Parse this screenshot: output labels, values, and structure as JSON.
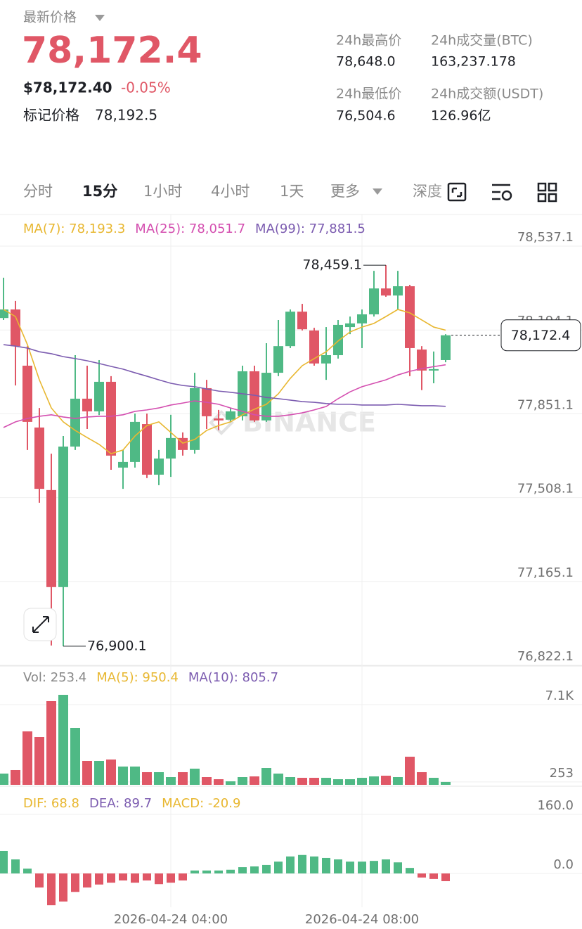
{
  "header": {
    "label": "最新价格",
    "price": "78,172.4",
    "usd_price": "$78,172.40",
    "change": "-0.05%",
    "mark_label": "标记价格",
    "mark_price": "78,192.5"
  },
  "stats": [
    {
      "label": "24h最高价",
      "value": "78,648.0"
    },
    {
      "label": "24h成交量(BTC)",
      "value": "163,237.178"
    },
    {
      "label": "24h最低价",
      "value": "76,504.6"
    },
    {
      "label": "24h成交额(USDT)",
      "value": "126.96亿"
    }
  ],
  "tabs": [
    "分时",
    "15分",
    "1小时",
    "4小时",
    "1天",
    "更多",
    "深度"
  ],
  "watermark": "BINANCE",
  "chart_data": [
    {
      "type": "candlestick",
      "up_color": "#4fb985",
      "down_color": "#e05766",
      "categories": [
        null,
        null,
        null,
        null,
        null,
        null,
        null,
        null,
        null,
        null,
        null,
        null,
        null,
        null,
        "2026-04-24 04:00",
        null,
        null,
        null,
        null,
        null,
        null,
        null,
        null,
        null,
        null,
        null,
        null,
        null,
        null,
        null,
        "2026-04-24 08:00",
        null,
        null,
        null,
        null,
        null,
        null,
        null
      ],
      "candles": {
        "open": [
          78243,
          78278,
          78048,
          77795,
          77539,
          77142,
          77717,
          77913,
          77861,
          77982,
          77631,
          77654,
          77809,
          77602,
          77668,
          77752,
          77703,
          77956,
          77832,
          77827,
          77841,
          78025,
          77824,
          78019,
          78128,
          78269,
          78192,
          78057,
          78091,
          78206,
          78221,
          78258,
          78364,
          78335,
          78373,
          78114,
          78028,
          78071
        ],
        "high": [
          78408,
          78313,
          78128,
          77875,
          77688,
          77760,
          78091,
          78048,
          78071,
          78005,
          77703,
          77852,
          77852,
          77703,
          77847,
          77775,
          78019,
          77990,
          77867,
          77875,
          78048,
          78048,
          78140,
          78235,
          78278,
          78301,
          78203,
          78206,
          78235,
          78249,
          78278,
          78436,
          78459.1,
          78436,
          78379,
          78128,
          78106,
          78177
        ],
        "low": [
          78235,
          77967,
          77703,
          77487,
          76903,
          76900.1,
          77703,
          77789,
          77846,
          77622,
          77544,
          77631,
          77588,
          77559,
          77593,
          77680,
          77688,
          77789,
          77784,
          77818,
          77824,
          77818,
          77818,
          78005,
          78120,
          78192,
          78048,
          77990,
          78077,
          78177,
          78120,
          78249,
          78330,
          78278,
          78005,
          77948,
          77976,
          78062
        ],
        "close": [
          78278,
          78128,
          77818,
          77544,
          77142,
          77717,
          77913,
          77861,
          77982,
          77680,
          77654,
          77818,
          77602,
          77668,
          77752,
          77703,
          77956,
          77841,
          77824,
          77861,
          78025,
          77824,
          78019,
          78128,
          78269,
          78197,
          78057,
          78091,
          78215,
          78221,
          78258,
          78364,
          78335,
          78373,
          78120,
          78028,
          78034,
          78172.4
        ]
      },
      "series": [
        {
          "name": "MA(7): 78,193.3",
          "color": "#e8b730",
          "values": [
            78278,
            78249,
            78134,
            77990,
            77875,
            77818,
            77783,
            77754,
            77726,
            77688,
            77703,
            77760,
            77803,
            77818,
            77775,
            77731,
            77746,
            77783,
            77803,
            77818,
            77847,
            77870,
            77890,
            77933,
            77996,
            78048,
            78077,
            78105,
            78149,
            78186,
            78206,
            78221,
            78249,
            78278,
            78264,
            78235,
            78206,
            78193.3
          ]
        },
        {
          "name": "MA(25): 78,051.7",
          "color": "#d44fb0",
          "values": [
            77795,
            77818,
            77832,
            77841,
            77847,
            77838,
            77832,
            77838,
            77841,
            77841,
            77847,
            77861,
            77867,
            77875,
            77887,
            77895,
            77904,
            77898,
            77890,
            77875,
            77861,
            77847,
            77841,
            77841,
            77847,
            77855,
            77867,
            77881,
            77913,
            77941,
            77962,
            77976,
            77990,
            78010,
            78025,
            78036,
            78044,
            78051.7
          ]
        },
        {
          "name": "MA(99): 77,881.5",
          "color": "#7c5cb0",
          "values": [
            78134,
            78128,
            78120,
            78105,
            78097,
            78085,
            78077,
            78068,
            78057,
            78045,
            78034,
            78019,
            78005,
            77990,
            77976,
            77967,
            77962,
            77953,
            77944,
            77939,
            77933,
            77927,
            77918,
            77913,
            77907,
            77901,
            77898,
            77893,
            77890,
            77890,
            77887,
            77887,
            77887,
            77890,
            77887,
            77884,
            77884,
            77881.5
          ]
        }
      ],
      "annotations": [
        {
          "label": "78,459.1",
          "value": 78459.1
        },
        {
          "label": "76,900.1",
          "value": 76900.1
        }
      ],
      "last_price": {
        "value": 78172.4,
        "label": "78,172.4"
      },
      "ylim": [
        76822.1,
        78666.6
      ],
      "yticks": [
        {
          "value": 78537.1,
          "label": "78,537.1"
        },
        {
          "value": 78194.1,
          "label": "78,194.1"
        },
        {
          "value": 77851.1,
          "label": "77,851.1"
        },
        {
          "value": 77508.1,
          "label": "77,508.1"
        },
        {
          "value": 77165.1,
          "label": "77,165.1"
        },
        {
          "value": 76822.1,
          "label": "76,822.1"
        }
      ],
      "grid": true
    },
    {
      "type": "bar",
      "legend": [
        {
          "text": "Vol: 253.4",
          "color": "#888888"
        },
        {
          "text": "MA(5): 950.4",
          "color": "#e8b730"
        },
        {
          "text": "MA(10): 805.7",
          "color": "#7c5cb0"
        }
      ],
      "values": [
        996,
        1308,
        4732,
        4234,
        7410,
        7970,
        5044,
        2117,
        2117,
        2242,
        1619,
        1619,
        1121,
        1121,
        685,
        1121,
        1432,
        685,
        498,
        311,
        685,
        747,
        1494,
        996,
        685,
        623,
        623,
        623,
        498,
        498,
        623,
        747,
        809,
        685,
        2491,
        1121,
        623,
        253.4
      ],
      "ylim": [
        0,
        10461
      ],
      "yticks": [
        {
          "value": 7100,
          "label": "7.1K"
        },
        {
          "value": 253.4,
          "label": "253"
        }
      ]
    },
    {
      "type": "histogram-macd",
      "up_color": "#4fb985",
      "down_color": "#e05766",
      "legend": [
        {
          "text": "DIF: 68.8",
          "color": "#e8b730"
        },
        {
          "text": "DEA: 89.7",
          "color": "#7c5cb0"
        },
        {
          "text": "MACD: -20.9",
          "color": "#e8b730"
        }
      ],
      "values": [
        61,
        38,
        13,
        -38,
        -86,
        -76,
        -50,
        -38,
        -30,
        -25,
        -19,
        -25,
        -19,
        -29,
        -25,
        -19,
        8,
        8,
        8,
        10,
        17,
        19,
        23,
        32,
        46,
        50,
        46,
        42,
        38,
        32,
        32,
        34,
        38,
        30,
        15,
        -11,
        -15,
        -20.9
      ],
      "ylim": [
        -91.4,
        213.3
      ],
      "yticks": [
        {
          "value": 160,
          "label": "160.0"
        },
        {
          "value": 0,
          "label": "0.0"
        }
      ]
    }
  ]
}
